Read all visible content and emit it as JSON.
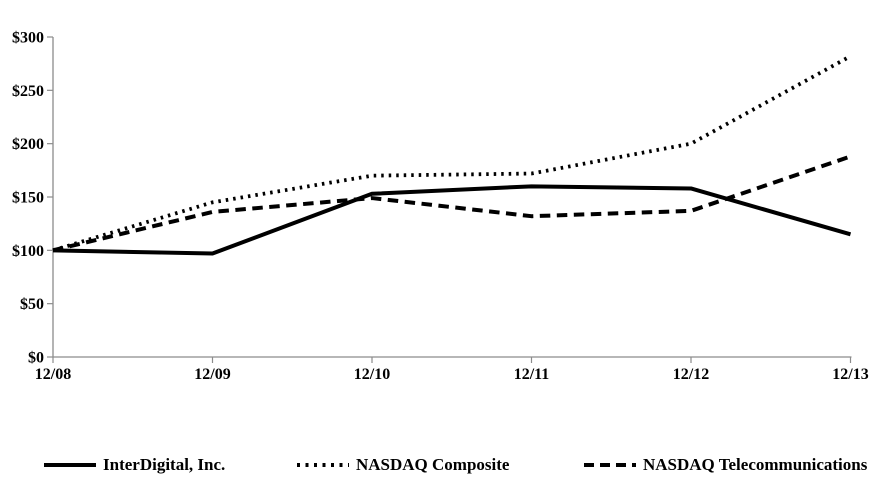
{
  "chart_data": {
    "type": "line",
    "x": [
      "12/08",
      "12/09",
      "12/10",
      "12/11",
      "12/12",
      "12/13"
    ],
    "series": [
      {
        "name": "InterDigital, Inc.",
        "line_style": "solid",
        "values": [
          100,
          97,
          153,
          160,
          158,
          115
        ]
      },
      {
        "name": "NASDAQ Composite",
        "line_style": "dotted",
        "values": [
          100,
          145,
          170,
          172,
          200,
          282
        ]
      },
      {
        "name": "NASDAQ Telecommunications",
        "line_style": "dashed",
        "values": [
          100,
          136,
          149,
          132,
          137,
          188
        ]
      }
    ],
    "y_ticks": [
      {
        "label": "$0",
        "value": 0
      },
      {
        "label": "$50",
        "value": 50
      },
      {
        "label": "$100",
        "value": 100
      },
      {
        "label": "$150",
        "value": 150
      },
      {
        "label": "$200",
        "value": 200
      },
      {
        "label": "$250",
        "value": 250
      },
      {
        "label": "$300",
        "value": 300
      }
    ],
    "ylim": [
      0,
      300
    ],
    "grid": false,
    "legend_position": "bottom",
    "colors": {
      "line": "#000000",
      "axis": "#8c8c8c",
      "background": "#ffffff",
      "text": "#000000"
    }
  }
}
